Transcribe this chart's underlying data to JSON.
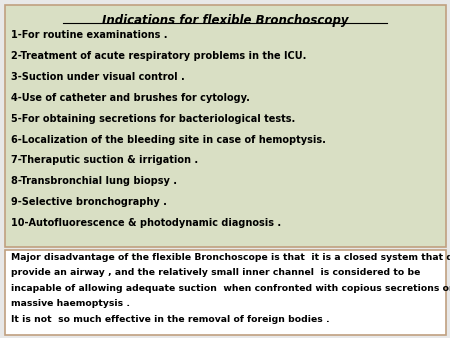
{
  "title": "Indications for flexible Bronchoscopy",
  "top_bg": "#d9dfc4",
  "bottom_bg": "#ffffff",
  "border_color": "#c0a080",
  "items": [
    "1-For routine examinations .",
    "2-Treatment of acute respiratory problems in the ICU.",
    "3-Suction under visual control .",
    "4-Use of catheter and brushes for cytology.",
    "5-For obtaining secretions for bacteriological tests.",
    "6-Localization of the bleeding site in case of hemoptysis.",
    "7-Theraputic suction & irrigation .",
    "8-Transbronchial lung biopsy .",
    "9-Selective bronchography .",
    "10-Autofluorescence & photodynamic diagnosis ."
  ],
  "bottom_lines": [
    "Major disadvantage of the flexible Bronchoscope is that  it is a closed system that does not",
    "provide an airway , and the relatively small inner channel  is considered to be",
    "incapable of allowing adequate suction  when confronted with copious secretions or",
    "massive haemoptysis .",
    "It is not  so much effective in the removal of foreign bodies ."
  ],
  "fig_width": 4.5,
  "fig_height": 3.38,
  "dpi": 100
}
